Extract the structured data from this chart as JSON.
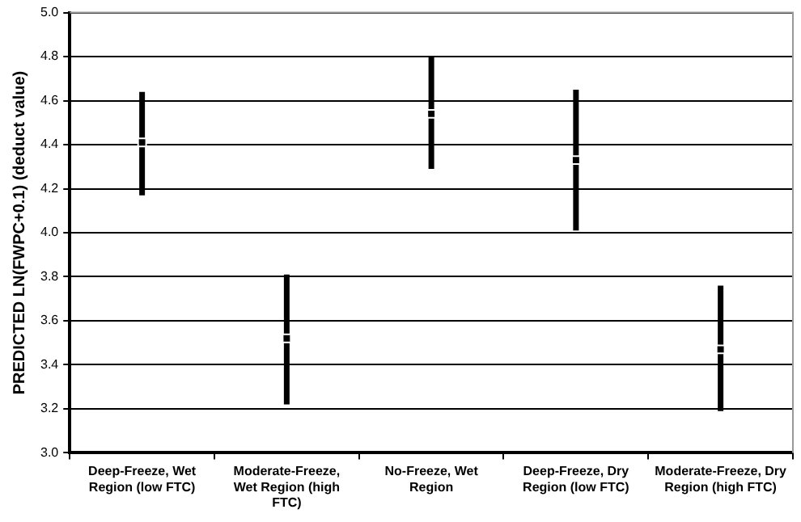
{
  "chart_data": {
    "type": "scatter",
    "ylabel": "PREDICTED LN(FWPC+0.1) (deduct value)",
    "categories": [
      "Deep-Freeze, Wet Region (low FTC)",
      "Moderate-Freeze, Wet Region (high FTC)",
      "No-Freeze, Wet Region",
      "Deep-Freeze, Dry Region (low FTC)",
      "Moderate-Freeze, Dry Region (high FTC)"
    ],
    "values": [
      4.41,
      3.52,
      4.54,
      4.33,
      3.47
    ],
    "errors": [
      [
        4.17,
        4.64
      ],
      [
        3.22,
        3.81
      ],
      [
        4.29,
        4.8
      ],
      [
        4.01,
        4.65
      ],
      [
        3.19,
        3.76
      ]
    ],
    "color": "#000000",
    "marker": "square",
    "ylim": [
      3.0,
      5.0
    ],
    "yticks": [
      {
        "value": 3.0,
        "label": "3.0"
      },
      {
        "value": 3.2,
        "label": "3.2"
      },
      {
        "value": 3.4,
        "label": "3.4"
      },
      {
        "value": 3.6,
        "label": "3.6"
      },
      {
        "value": 3.8,
        "label": "3.8"
      },
      {
        "value": 4.0,
        "label": "4.0"
      },
      {
        "value": 4.2,
        "label": "4.2"
      },
      {
        "value": 4.4,
        "label": "4.4"
      },
      {
        "value": 4.6,
        "label": "4.6"
      },
      {
        "value": 4.8,
        "label": "4.8"
      },
      {
        "value": 5.0,
        "label": "5.0"
      }
    ],
    "grid": "y",
    "legend": false
  }
}
